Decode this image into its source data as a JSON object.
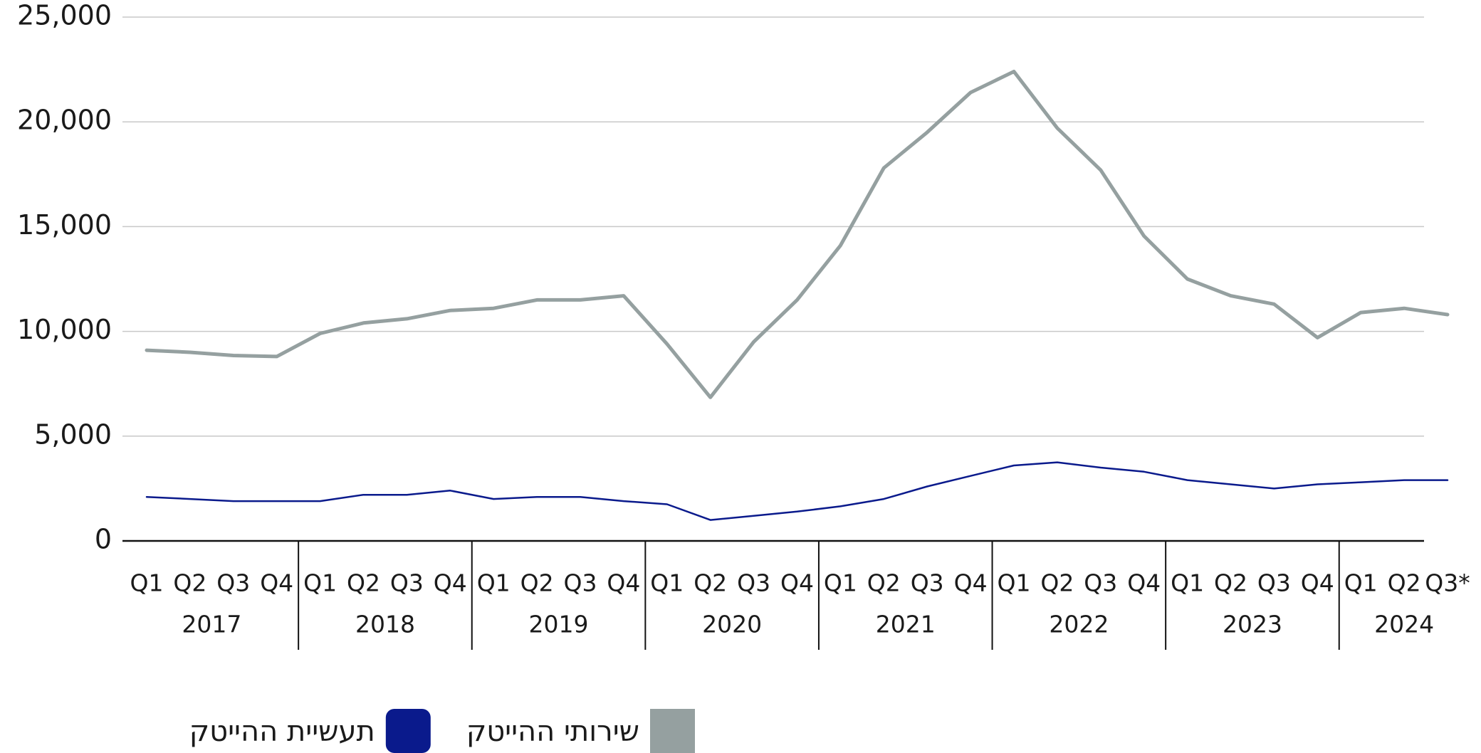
{
  "chart_data": {
    "type": "line",
    "categories": [
      "Q1",
      "Q2",
      "Q3",
      "Q4",
      "Q1",
      "Q2",
      "Q3",
      "Q4",
      "Q1",
      "Q2",
      "Q3",
      "Q4",
      "Q1",
      "Q2",
      "Q3",
      "Q4",
      "Q1",
      "Q2",
      "Q3",
      "Q4",
      "Q1",
      "Q2",
      "Q3",
      "Q4",
      "Q1",
      "Q2",
      "Q3",
      "Q4",
      "Q1",
      "Q2",
      "Q3*"
    ],
    "years": [
      "2017",
      "2018",
      "2019",
      "2020",
      "2021",
      "2022",
      "2023",
      "2024"
    ],
    "series": [
      {
        "name": "שירותי ההייטק",
        "color": "#95a0a0",
        "values": [
          9100,
          9000,
          8850,
          8800,
          9900,
          10400,
          10600,
          11000,
          11100,
          11500,
          11500,
          11700,
          9400,
          6850,
          9500,
          11500,
          14100,
          17800,
          19500,
          21400,
          22400,
          19700,
          17700,
          14550,
          12500,
          11700,
          11300,
          9700,
          10900,
          11100,
          10800
        ]
      },
      {
        "name": "תעשיית  ההייטק",
        "color": "#0a1a8c",
        "values": [
          2100,
          2000,
          1900,
          1900,
          1900,
          2200,
          2200,
          2400,
          2000,
          2100,
          2100,
          1900,
          1750,
          1000,
          1200,
          1400,
          1650,
          2000,
          2600,
          3100,
          3600,
          3750,
          3500,
          3300,
          2900,
          2700,
          2500,
          2700,
          2800,
          2900,
          2900
        ]
      }
    ],
    "ylim": [
      0,
      25000
    ],
    "yticks": [
      0,
      {
        "value": 5000,
        "label": "5,000"
      },
      {
        "value": 10000,
        "label": "10,000"
      },
      {
        "value": 15000,
        "label": "15,000"
      },
      {
        "value": 20000,
        "label": "20,000"
      },
      {
        "value": 25000,
        "label": "25,000"
      }
    ],
    "grid": true,
    "legend": "bottom"
  }
}
